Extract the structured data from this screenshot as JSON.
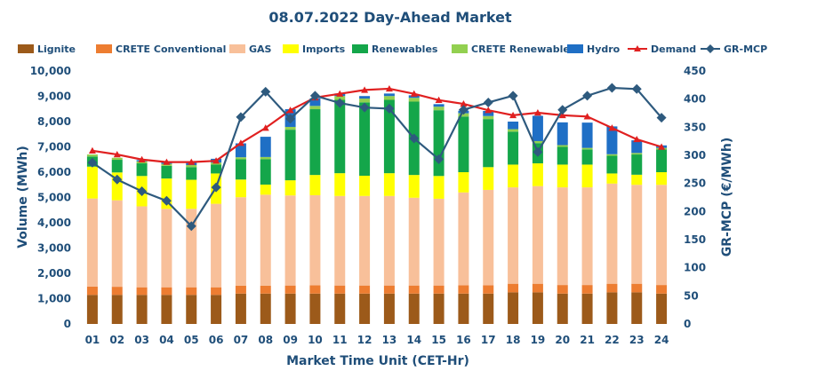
{
  "chart_data": {
    "type": "bar",
    "title": "08.07.2022  Day-Ahead Market",
    "xlabel": "Market Time Unit (CET-Hr)",
    "ylabel": "Volume (MWh)",
    "y2label": "GR-MCP (€/MWh)",
    "ylim": [
      0,
      10000
    ],
    "y2lim": [
      0,
      450
    ],
    "y_ticks": [
      "0",
      "1,000",
      "2,000",
      "3,000",
      "4,000",
      "5,000",
      "6,000",
      "7,000",
      "8,000",
      "9,000",
      "10,000"
    ],
    "y2_ticks": [
      "0",
      "50",
      "100",
      "150",
      "200",
      "250",
      "300",
      "350",
      "400",
      "450"
    ],
    "categories": [
      "01",
      "02",
      "03",
      "04",
      "05",
      "06",
      "07",
      "08",
      "09",
      "10",
      "11",
      "12",
      "13",
      "14",
      "15",
      "16",
      "17",
      "18",
      "19",
      "20",
      "21",
      "22",
      "23",
      "24"
    ],
    "legend": [
      "Lignite",
      "CRETE Conventional",
      "GAS",
      "Imports",
      "Renewables",
      "CRETE Renewables",
      "Hydro",
      "Demand",
      "GR-MCP"
    ],
    "series": [
      {
        "name": "Lignite",
        "type": "bar",
        "color": "#9c5a1a",
        "values": [
          1150,
          1150,
          1150,
          1150,
          1150,
          1150,
          1200,
          1200,
          1200,
          1200,
          1200,
          1200,
          1200,
          1200,
          1200,
          1200,
          1200,
          1250,
          1250,
          1200,
          1200,
          1250,
          1250,
          1200
        ]
      },
      {
        "name": "CRETE Conventional",
        "type": "bar",
        "color": "#ed7d31",
        "values": [
          330,
          320,
          300,
          300,
          300,
          300,
          310,
          310,
          320,
          330,
          320,
          320,
          320,
          320,
          320,
          330,
          330,
          340,
          340,
          340,
          340,
          340,
          340,
          340
        ]
      },
      {
        "name": "GAS",
        "type": "bar",
        "color": "#f8c09a",
        "values": [
          3480,
          3420,
          3200,
          3100,
          3100,
          3300,
          3500,
          3600,
          3560,
          3560,
          3540,
          3540,
          3540,
          3470,
          3430,
          3670,
          3770,
          3810,
          3860,
          3860,
          3860,
          3960,
          3910,
          3960
        ]
      },
      {
        "name": "Imports",
        "type": "bar",
        "color": "#ffff00",
        "values": [
          1260,
          1100,
          1200,
          1200,
          1150,
          1200,
          700,
          400,
          600,
          800,
          900,
          800,
          900,
          900,
          900,
          800,
          900,
          900,
          900,
          900,
          900,
          400,
          400,
          500
        ]
      },
      {
        "name": "Renewables",
        "type": "bar",
        "color": "#14a64a",
        "values": [
          400,
          500,
          500,
          500,
          500,
          350,
          800,
          1000,
          2000,
          2600,
          2900,
          2900,
          2900,
          2900,
          2600,
          2200,
          1900,
          1300,
          800,
          700,
          600,
          700,
          800,
          900
        ]
      },
      {
        "name": "CRETE Renewables",
        "type": "bar",
        "color": "#92d050",
        "values": [
          80,
          80,
          80,
          80,
          80,
          80,
          80,
          90,
          110,
          130,
          150,
          150,
          150,
          150,
          140,
          130,
          120,
          100,
          80,
          70,
          60,
          60,
          60,
          60
        ]
      },
      {
        "name": "Hydro",
        "type": "bar",
        "color": "#1f6fc5",
        "values": [
          0,
          0,
          50,
          100,
          150,
          150,
          550,
          800,
          700,
          300,
          100,
          100,
          100,
          100,
          100,
          100,
          200,
          300,
          1000,
          900,
          1000,
          1100,
          500,
          100
        ]
      },
      {
        "name": "Demand",
        "type": "line",
        "axis": "left",
        "color": "#e02020",
        "values": [
          6850,
          6700,
          6500,
          6400,
          6400,
          6450,
          7150,
          7750,
          8450,
          8950,
          9100,
          9250,
          9300,
          9100,
          8850,
          8700,
          8450,
          8250,
          8350,
          8250,
          8200,
          7750,
          7300,
          7000
        ]
      },
      {
        "name": "GR-MCP",
        "type": "line",
        "axis": "right",
        "color": "#2e5a7e",
        "values": [
          287,
          257,
          236,
          219,
          174,
          243,
          368,
          413,
          365,
          406,
          393,
          385,
          383,
          330,
          293,
          381,
          394,
          406,
          306,
          381,
          406,
          420,
          418,
          367
        ]
      }
    ]
  }
}
